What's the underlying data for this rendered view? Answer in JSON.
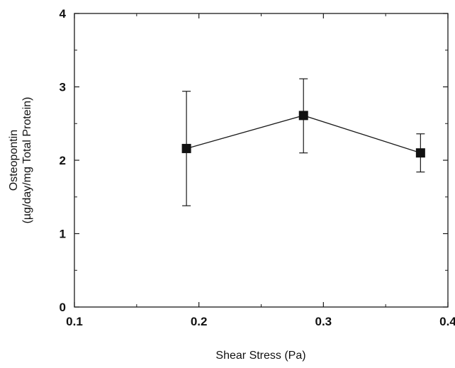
{
  "chart_data": {
    "type": "line",
    "title": "",
    "xlabel": "Shear Stress (Pa)",
    "ylabel_lines": [
      "Osteopontin",
      "(µg/day/mg Total Protein)"
    ],
    "xlim": [
      0.1,
      0.4
    ],
    "ylim": [
      0,
      4
    ],
    "x_ticks": [
      "0.1",
      "0.2",
      "0.3",
      "0.4"
    ],
    "y_ticks": [
      "0",
      "1",
      "2",
      "3",
      "4"
    ],
    "x_minor_step": 0.05,
    "y_minor_step": 0.5,
    "grid": false,
    "legend": "none",
    "series": [
      {
        "x": [
          0.19,
          0.284,
          0.378
        ],
        "y": [
          2.16,
          2.61,
          2.1
        ],
        "error_low": [
          1.38,
          2.1,
          1.84
        ],
        "error_high": [
          2.94,
          3.11,
          2.36
        ]
      }
    ],
    "colors": {
      "line": "#1a1a1a",
      "marker": "#111111",
      "axis": "#1a1a1a",
      "text": "#111111"
    }
  }
}
